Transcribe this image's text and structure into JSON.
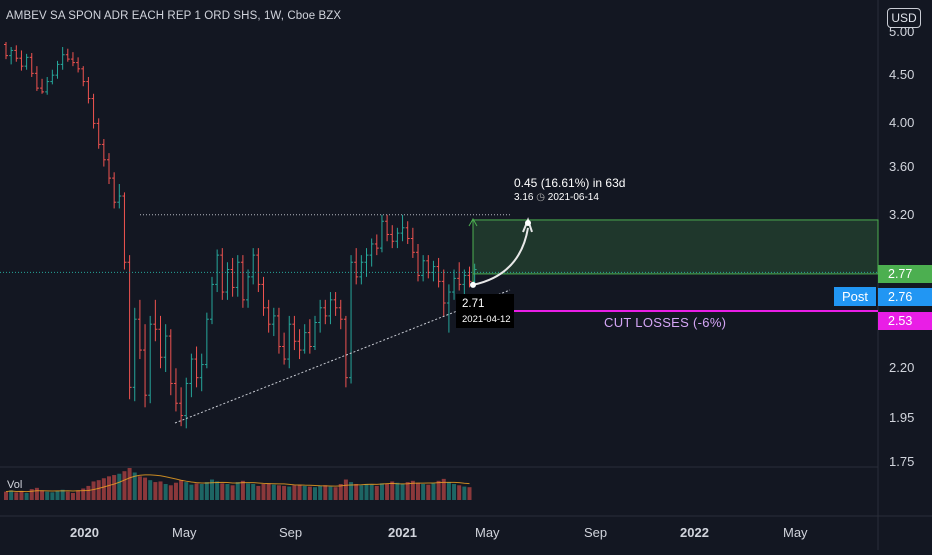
{
  "chart": {
    "title": "AMBEV SA SPON ADR EACH REP 1 ORD SHS, 1W, Cboe BZX",
    "currency_button": "USD",
    "volume_label": "Vol"
  },
  "y_axis": {
    "ticks": [
      {
        "label": "5.00",
        "value": 5.0
      },
      {
        "label": "4.50",
        "value": 4.5
      },
      {
        "label": "4.00",
        "value": 4.0
      },
      {
        "label": "3.60",
        "value": 3.6
      },
      {
        "label": "3.20",
        "value": 3.2
      },
      {
        "label": "2.20",
        "value": 2.2
      },
      {
        "label": "1.95",
        "value": 1.95
      },
      {
        "label": "1.75",
        "value": 1.75
      }
    ]
  },
  "x_axis": {
    "ticks": [
      {
        "label": "2020",
        "bold": true
      },
      {
        "label": "May",
        "bold": false
      },
      {
        "label": "Sep",
        "bold": false
      },
      {
        "label": "2021",
        "bold": true
      },
      {
        "label": "May",
        "bold": false
      },
      {
        "label": "Sep",
        "bold": false
      },
      {
        "label": "2022",
        "bold": true
      },
      {
        "label": "May",
        "bold": false
      }
    ]
  },
  "price_tags": {
    "target": {
      "label": "2.77",
      "color": "#4caf50"
    },
    "post_label": "Post",
    "post": {
      "label": "2.76",
      "color": "#2196f3"
    },
    "stop": {
      "label": "2.53",
      "color": "#e91ee6"
    }
  },
  "annotations": {
    "projection": "0.45 (16.61%) in 63d",
    "projection_price": "3.16",
    "projection_date": "2021-06-14",
    "point_price": "2.71",
    "point_date": "2021-04-12",
    "stop_text": "CUT LOSSES (-6%)"
  },
  "colors": {
    "up": "#26a69a",
    "down": "#ef5350",
    "up_vol": "#26a69a",
    "down_vol": "#ef5350"
  },
  "chart_data": {
    "type": "ohlc",
    "bars": [
      [
        4.85,
        4.88,
        4.68,
        4.72
      ],
      [
        4.72,
        4.82,
        4.62,
        4.78
      ],
      [
        4.78,
        4.84,
        4.65,
        4.69
      ],
      [
        4.69,
        4.78,
        4.55,
        4.6
      ],
      [
        4.6,
        4.74,
        4.56,
        4.7
      ],
      [
        4.7,
        4.75,
        4.48,
        4.52
      ],
      [
        4.52,
        4.6,
        4.33,
        4.36
      ],
      [
        4.36,
        4.46,
        4.3,
        4.32
      ],
      [
        4.32,
        4.48,
        4.29,
        4.43
      ],
      [
        4.43,
        4.56,
        4.4,
        4.5
      ],
      [
        4.5,
        4.66,
        4.46,
        4.62
      ],
      [
        4.62,
        4.82,
        4.56,
        4.73
      ],
      [
        4.73,
        4.8,
        4.65,
        4.68
      ],
      [
        4.68,
        4.76,
        4.6,
        4.64
      ],
      [
        4.64,
        4.7,
        4.53,
        4.57
      ],
      [
        4.57,
        4.6,
        4.38,
        4.43
      ],
      [
        4.43,
        4.48,
        4.2,
        4.25
      ],
      [
        4.25,
        4.3,
        3.95,
        4.0
      ],
      [
        4.0,
        4.05,
        3.76,
        3.8
      ],
      [
        3.8,
        3.85,
        3.6,
        3.66
      ],
      [
        3.66,
        3.72,
        3.45,
        3.5
      ],
      [
        3.5,
        3.55,
        3.25,
        3.3
      ],
      [
        3.3,
        3.45,
        3.25,
        3.35
      ],
      [
        3.35,
        3.38,
        2.8,
        2.85
      ],
      [
        2.85,
        2.9,
        2.04,
        2.1
      ],
      [
        2.1,
        2.55,
        2.03,
        2.48
      ],
      [
        2.48,
        2.6,
        2.25,
        2.3
      ],
      [
        2.3,
        2.45,
        2.0,
        2.06
      ],
      [
        2.06,
        2.5,
        2.02,
        2.45
      ],
      [
        2.45,
        2.6,
        2.35,
        2.42
      ],
      [
        2.42,
        2.5,
        2.2,
        2.26
      ],
      [
        2.26,
        2.45,
        2.18,
        2.38
      ],
      [
        2.38,
        2.42,
        2.06,
        2.12
      ],
      [
        2.12,
        2.2,
        1.98,
        2.02
      ],
      [
        2.02,
        2.1,
        1.91,
        1.96
      ],
      [
        1.96,
        2.15,
        1.9,
        2.12
      ],
      [
        2.12,
        2.28,
        2.05,
        2.25
      ],
      [
        2.25,
        2.32,
        2.1,
        2.15
      ],
      [
        2.15,
        2.28,
        2.08,
        2.22
      ],
      [
        2.22,
        2.52,
        2.2,
        2.48
      ],
      [
        2.48,
        2.75,
        2.45,
        2.7
      ],
      [
        2.7,
        2.94,
        2.65,
        2.9
      ],
      [
        2.9,
        2.95,
        2.6,
        2.65
      ],
      [
        2.65,
        2.85,
        2.6,
        2.8
      ],
      [
        2.8,
        2.88,
        2.62,
        2.68
      ],
      [
        2.68,
        2.9,
        2.62,
        2.85
      ],
      [
        2.85,
        2.9,
        2.55,
        2.6
      ],
      [
        2.6,
        2.8,
        2.55,
        2.75
      ],
      [
        2.75,
        2.95,
        2.7,
        2.9
      ],
      [
        2.9,
        2.95,
        2.65,
        2.7
      ],
      [
        2.7,
        2.75,
        2.5,
        2.55
      ],
      [
        2.55,
        2.6,
        2.4,
        2.45
      ],
      [
        2.45,
        2.55,
        2.38,
        2.5
      ],
      [
        2.5,
        2.55,
        2.28,
        2.32
      ],
      [
        2.32,
        2.4,
        2.22,
        2.25
      ],
      [
        2.25,
        2.5,
        2.2,
        2.45
      ],
      [
        2.45,
        2.5,
        2.3,
        2.35
      ],
      [
        2.35,
        2.42,
        2.25,
        2.3
      ],
      [
        2.3,
        2.45,
        2.28,
        2.4
      ],
      [
        2.4,
        2.48,
        2.28,
        2.32
      ],
      [
        2.32,
        2.5,
        2.3,
        2.46
      ],
      [
        2.46,
        2.6,
        2.4,
        2.55
      ],
      [
        2.55,
        2.6,
        2.45,
        2.5
      ],
      [
        2.5,
        2.65,
        2.45,
        2.6
      ],
      [
        2.6,
        2.65,
        2.5,
        2.55
      ],
      [
        2.55,
        2.6,
        2.42,
        2.48
      ],
      [
        2.48,
        2.5,
        2.1,
        2.15
      ],
      [
        2.15,
        2.9,
        2.12,
        2.85
      ],
      [
        2.85,
        2.95,
        2.7,
        2.75
      ],
      [
        2.75,
        2.9,
        2.7,
        2.85
      ],
      [
        2.85,
        2.95,
        2.75,
        2.9
      ],
      [
        2.9,
        3.02,
        2.82,
        2.98
      ],
      [
        2.98,
        3.05,
        2.9,
        2.95
      ],
      [
        2.95,
        3.2,
        2.92,
        3.15
      ],
      [
        3.15,
        3.2,
        3.0,
        3.05
      ],
      [
        3.05,
        3.12,
        2.95,
        3.0
      ],
      [
        3.0,
        3.1,
        2.95,
        3.06
      ],
      [
        3.06,
        3.2,
        3.0,
        3.1
      ],
      [
        3.1,
        3.15,
        2.98,
        3.02
      ],
      [
        3.02,
        3.1,
        2.88,
        2.92
      ],
      [
        2.92,
        2.98,
        2.72,
        2.76
      ],
      [
        2.76,
        2.9,
        2.72,
        2.86
      ],
      [
        2.86,
        2.9,
        2.74,
        2.78
      ],
      [
        2.78,
        2.86,
        2.72,
        2.82
      ],
      [
        2.82,
        2.88,
        2.68,
        2.72
      ],
      [
        2.72,
        2.8,
        2.5,
        2.58
      ],
      [
        2.58,
        2.7,
        2.4,
        2.65
      ],
      [
        2.65,
        2.8,
        2.6,
        2.74
      ],
      [
        2.74,
        2.85,
        2.66,
        2.7
      ],
      [
        2.7,
        2.8,
        2.62,
        2.76
      ],
      [
        2.76,
        2.82,
        2.68,
        2.72
      ],
      [
        2.72,
        2.84,
        2.68,
        2.8
      ]
    ],
    "volume": [
      0.26,
      0.3,
      0.24,
      0.28,
      0.22,
      0.34,
      0.38,
      0.3,
      0.26,
      0.24,
      0.28,
      0.32,
      0.26,
      0.22,
      0.3,
      0.36,
      0.44,
      0.58,
      0.62,
      0.68,
      0.74,
      0.78,
      0.82,
      0.9,
      1.0,
      0.86,
      0.74,
      0.7,
      0.62,
      0.56,
      0.58,
      0.5,
      0.46,
      0.54,
      0.62,
      0.56,
      0.48,
      0.52,
      0.5,
      0.56,
      0.64,
      0.58,
      0.52,
      0.5,
      0.46,
      0.56,
      0.6,
      0.52,
      0.5,
      0.44,
      0.5,
      0.52,
      0.48,
      0.46,
      0.44,
      0.42,
      0.46,
      0.48,
      0.44,
      0.42,
      0.4,
      0.44,
      0.46,
      0.42,
      0.4,
      0.5,
      0.64,
      0.56,
      0.5,
      0.46,
      0.5,
      0.48,
      0.44,
      0.52,
      0.5,
      0.58,
      0.54,
      0.5,
      0.56,
      0.6,
      0.54,
      0.5,
      0.48,
      0.52,
      0.6,
      0.66,
      0.56,
      0.5,
      0.46,
      0.42,
      0.4
    ],
    "levels": {
      "entry": 2.77,
      "target": 3.16,
      "post": 2.76,
      "stop": 2.53,
      "resistance": 3.2,
      "point": 2.71
    },
    "y_scale": "log",
    "x_tick_labels": [
      "2020",
      "May",
      "Sep",
      "2021",
      "May",
      "Sep",
      "2022",
      "May"
    ]
  }
}
